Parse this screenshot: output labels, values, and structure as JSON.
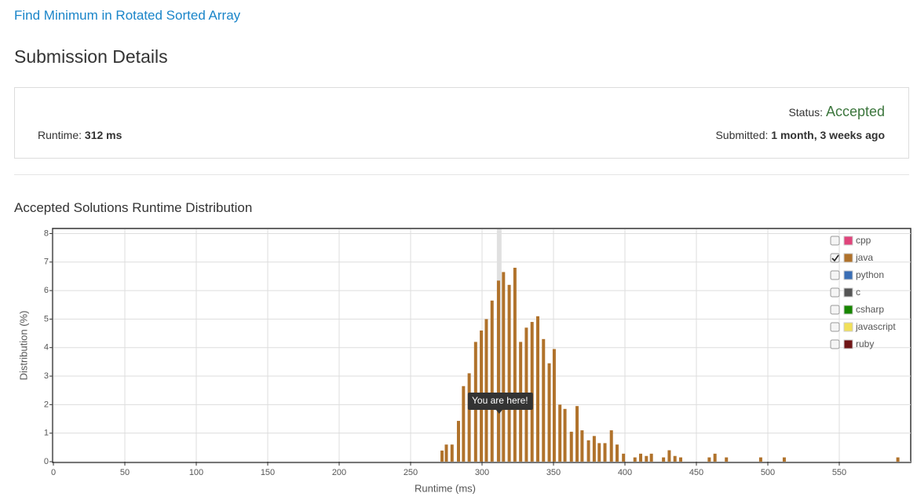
{
  "header": {
    "problem_link": "Find Minimum in Rotated Sorted Array",
    "title": "Submission Details"
  },
  "details": {
    "status_label": "Status:",
    "status": "Accepted",
    "runtime_label": "Runtime:",
    "runtime": "312 ms",
    "submitted_label": "Submitted:",
    "submitted": "1 month, 3 weeks ago"
  },
  "chart_data": {
    "type": "bar",
    "title": "Accepted Solutions Runtime Distribution",
    "xlabel": "Runtime (ms)",
    "ylabel": "Distribution (%)",
    "xlim": [
      0,
      600
    ],
    "ylim": [
      0,
      8.15
    ],
    "xticks": [
      0,
      50,
      100,
      150,
      200,
      250,
      300,
      350,
      400,
      450,
      500,
      550
    ],
    "yticks": [
      0,
      1,
      2,
      3,
      4,
      5,
      6,
      7,
      8
    ],
    "grid": true,
    "annotation": "You are here!",
    "annotation_x": 312,
    "x": [
      272,
      275,
      279,
      283.5,
      287,
      291,
      295.5,
      299.5,
      303,
      307,
      311.5,
      315,
      319,
      323,
      327,
      331,
      335,
      339,
      343,
      347,
      350.5,
      354.5,
      358,
      362.5,
      366.5,
      370,
      374.5,
      378.5,
      382,
      386,
      390.5,
      394.5,
      399,
      407,
      411,
      415,
      418.5,
      427,
      431,
      435,
      439,
      459,
      463,
      471,
      495,
      511.5,
      591
    ],
    "series": [
      {
        "name": "cpp",
        "color": "#e0457b",
        "visible": false
      },
      {
        "name": "java",
        "color": "#b0722b",
        "visible": true,
        "values": [
          0.39,
          0.6,
          0.6,
          1.43,
          2.65,
          3.1,
          4.2,
          4.6,
          5.0,
          5.65,
          6.35,
          6.65,
          6.2,
          6.8,
          4.2,
          4.7,
          4.9,
          5.1,
          4.3,
          3.45,
          3.95,
          2.0,
          1.85,
          1.05,
          1.95,
          1.1,
          0.75,
          0.9,
          0.65,
          0.65,
          1.1,
          0.6,
          0.28,
          0.15,
          0.28,
          0.2,
          0.28,
          0.15,
          0.4,
          0.2,
          0.15,
          0.15,
          0.28,
          0.15,
          0.15,
          0.15,
          0.15
        ]
      },
      {
        "name": "python",
        "color": "#3a6eb5",
        "visible": false
      },
      {
        "name": "c",
        "color": "#555555",
        "visible": false
      },
      {
        "name": "csharp",
        "color": "#178600",
        "visible": false
      },
      {
        "name": "javascript",
        "color": "#f1e05a",
        "visible": false
      },
      {
        "name": "ruby",
        "color": "#701516",
        "visible": false
      }
    ]
  }
}
